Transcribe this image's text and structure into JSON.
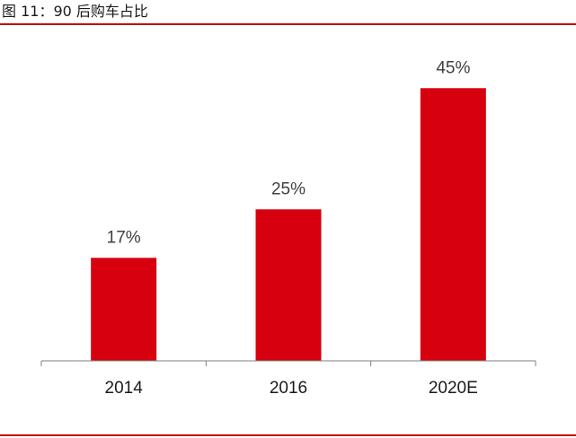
{
  "figure": {
    "title": "图 11：90 后购车占比"
  },
  "colors": {
    "bar": "#d7000f",
    "rule": "#c00000",
    "axis": "#7f7f7f"
  },
  "chart_data": {
    "type": "bar",
    "categories": [
      "2014",
      "2016",
      "2020E"
    ],
    "values": [
      17,
      25,
      45
    ],
    "data_labels": [
      "17%",
      "25%",
      "45%"
    ],
    "unit": "%",
    "ylim": [
      0,
      50
    ],
    "grid": false,
    "legend": "none",
    "title": "",
    "xlabel": "",
    "ylabel": ""
  }
}
